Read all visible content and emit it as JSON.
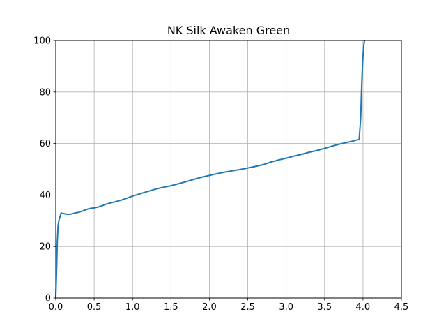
{
  "chart_data": {
    "type": "line",
    "title": "NK Silk Awaken Green",
    "xlabel": "",
    "ylabel": "",
    "xlim": [
      0,
      4.5
    ],
    "ylim": [
      0,
      100
    ],
    "grid": true,
    "x_ticks": [
      0.0,
      0.5,
      1.0,
      1.5,
      2.0,
      2.5,
      3.0,
      3.5,
      4.0,
      4.5
    ],
    "x_tick_labels": [
      "0.0",
      "0.5",
      "1.0",
      "1.5",
      "2.0",
      "2.5",
      "3.0",
      "3.5",
      "4.0",
      "4.5"
    ],
    "y_ticks": [
      0,
      20,
      40,
      60,
      80,
      100
    ],
    "y_tick_labels": [
      "0",
      "20",
      "40",
      "60",
      "80",
      "100"
    ],
    "series": [
      {
        "color": "#1f77b4",
        "x": [
          0.0,
          0.01,
          0.02,
          0.03,
          0.04,
          0.05,
          0.07,
          0.1,
          0.15,
          0.2,
          0.25,
          0.3,
          0.35,
          0.4,
          0.45,
          0.5,
          0.55,
          0.6,
          0.65,
          0.7,
          0.75,
          0.8,
          0.85,
          0.9,
          1.0,
          1.1,
          1.2,
          1.3,
          1.4,
          1.5,
          1.6,
          1.7,
          1.8,
          1.9,
          2.0,
          2.1,
          2.2,
          2.3,
          2.4,
          2.5,
          2.6,
          2.7,
          2.8,
          2.9,
          3.0,
          3.1,
          3.2,
          3.3,
          3.4,
          3.5,
          3.6,
          3.7,
          3.8,
          3.9,
          3.95,
          3.97,
          3.98,
          3.99,
          4.0,
          4.01,
          4.02
        ],
        "y": [
          0,
          10,
          22,
          28,
          30,
          31,
          33,
          32.8,
          32.5,
          32.6,
          33.0,
          33.3,
          33.8,
          34.4,
          34.8,
          35.0,
          35.3,
          35.8,
          36.4,
          36.8,
          37.2,
          37.6,
          38.0,
          38.5,
          39.6,
          40.5,
          41.4,
          42.3,
          43.0,
          43.6,
          44.4,
          45.2,
          46.1,
          46.9,
          47.6,
          48.3,
          48.9,
          49.4,
          49.9,
          50.5,
          51.1,
          51.8,
          52.8,
          53.6,
          54.3,
          55.1,
          55.8,
          56.6,
          57.3,
          58.1,
          59.0,
          59.8,
          60.5,
          61.2,
          61.6,
          70,
          80,
          88,
          94,
          98,
          100
        ]
      }
    ]
  }
}
